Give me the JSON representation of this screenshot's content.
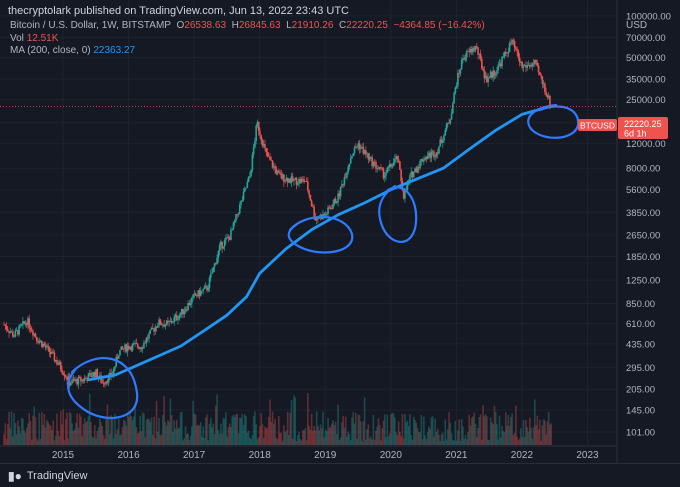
{
  "publisher": "thecryptolark published on TradingView.com, Jun 13, 2022 23:43 UTC",
  "legend": {
    "symbol": "Bitcoin / U.S. Dollar, 1W, BITSTAMP",
    "o_label": "O",
    "o": "26538.63",
    "h_label": "H",
    "h": "26845.63",
    "l_label": "L",
    "l": "21910.26",
    "c_label": "C",
    "c": "22220.25",
    "chg": "−4364.85 (−16.42%)",
    "vol_label": "Vol",
    "vol": "12.51K",
    "ma_label": "MA (200, close, 0)",
    "ma": "22363.27"
  },
  "colors": {
    "background": "#151924",
    "up": "#26a69a",
    "down": "#ef5350",
    "ma": "#2196f3",
    "annotation": "#2f7bff",
    "price_tag": "#ef5350"
  },
  "price_tag": {
    "symbol": "BTCUSD",
    "price": "22220.25",
    "countdown": "6d 1h"
  },
  "footer": {
    "brand": "TradingView"
  },
  "chart_data": {
    "type": "line",
    "title": "Bitcoin / U.S. Dollar, 1W, BITSTAMP",
    "y_scale": "log",
    "y_unit": "USD",
    "ylim": [
      80,
      130000
    ],
    "y_ticks": [
      100000,
      70000,
      50000,
      35000,
      25000,
      17000,
      12000,
      8000,
      5600,
      3850,
      2650,
      1850,
      1250,
      850,
      610,
      435,
      295,
      205,
      145,
      101
    ],
    "y_tick_labels": [
      "100000.00",
      "70000.00",
      "50000.00",
      "35000.00",
      "25000.00",
      "17000.00",
      "12000.00",
      "8000.00",
      "5600.00",
      "3850.00",
      "2650.00",
      "1850.00",
      "1250.00",
      "850.00",
      "610.00",
      "435.00",
      "295.00",
      "205.00",
      "145.00",
      "101.00"
    ],
    "x_ticks": [
      "2015",
      "2016",
      "2017",
      "2018",
      "2019",
      "2020",
      "2021",
      "2022",
      "2023"
    ],
    "xlim": [
      2014.1,
      2023.45
    ],
    "grid": true,
    "series": [
      {
        "name": "Bitcoin / U.S. Dollar",
        "style": "candles",
        "x": [
          2014.1,
          2014.25,
          2014.45,
          2014.6,
          2014.8,
          2015.0,
          2015.1,
          2015.3,
          2015.5,
          2015.6,
          2015.75,
          2015.85,
          2016.0,
          2016.2,
          2016.45,
          2016.6,
          2016.8,
          2017.0,
          2017.2,
          2017.4,
          2017.55,
          2017.7,
          2017.85,
          2017.96,
          2018.1,
          2018.3,
          2018.5,
          2018.7,
          2018.85,
          2019.0,
          2019.2,
          2019.4,
          2019.5,
          2019.7,
          2019.9,
          2020.1,
          2020.2,
          2020.3,
          2020.5,
          2020.7,
          2020.9,
          2021.0,
          2021.1,
          2021.3,
          2021.45,
          2021.6,
          2021.85,
          2022.0,
          2022.2,
          2022.35,
          2022.45
        ],
        "y": [
          600,
          500,
          640,
          480,
          380,
          280,
          230,
          240,
          270,
          230,
          260,
          380,
          420,
          420,
          620,
          600,
          720,
          950,
          1100,
          2200,
          2600,
          4300,
          7000,
          17000,
          10000,
          7000,
          6500,
          6500,
          3500,
          3700,
          5000,
          10000,
          12000,
          9000,
          7200,
          9500,
          5000,
          7000,
          9500,
          10500,
          18000,
          33000,
          50000,
          60000,
          35000,
          40000,
          65000,
          43000,
          45000,
          30000,
          22220.25
        ]
      },
      {
        "name": "MA (200, close, 0)",
        "x": [
          2015.4,
          2015.8,
          2016.3,
          2016.8,
          2017.2,
          2017.5,
          2017.8,
          2018.0,
          2018.4,
          2018.8,
          2019.2,
          2019.6,
          2020.0,
          2020.4,
          2020.8,
          2021.2,
          2021.6,
          2022.0,
          2022.45
        ],
        "y": [
          240,
          260,
          330,
          420,
          560,
          700,
          950,
          1400,
          2100,
          2900,
          3700,
          4500,
          5600,
          6700,
          8000,
          11000,
          15000,
          19500,
          22363.27
        ]
      }
    ]
  }
}
